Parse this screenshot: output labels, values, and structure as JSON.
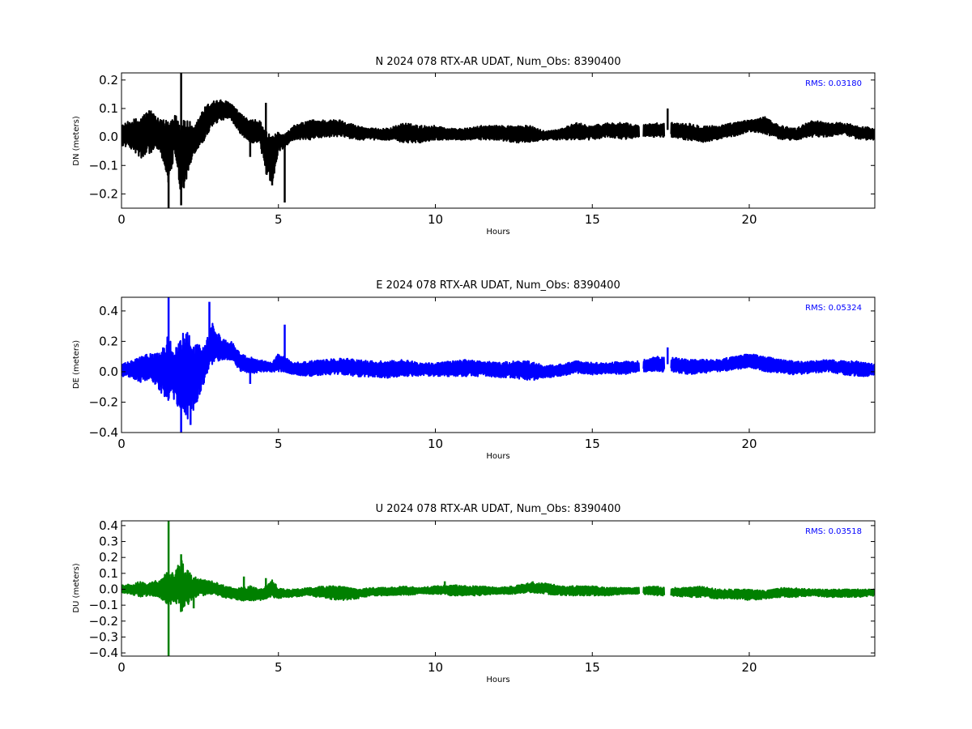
{
  "chart_data": [
    {
      "type": "line",
      "title": "N 2024 078 RTX-AR  UDAT, Num_Obs: 8390400",
      "xlabel": "Hours",
      "ylabel": "DN (meters)",
      "xlim": [
        0,
        24
      ],
      "ylim": [
        -0.25,
        0.225
      ],
      "xticks": [
        "0",
        "5",
        "10",
        "15",
        "20"
      ],
      "yticks": [
        "−0.2",
        "−0.1",
        "0.0",
        "0.1",
        "0.2"
      ],
      "ytick_values": [
        -0.2,
        -0.1,
        0.0,
        0.1,
        0.2
      ],
      "grid": false,
      "color": "#000000",
      "annotation": "RMS:  0.03180",
      "annotation_color": "#0000ff",
      "gaps": [
        [
          16.5,
          16.62
        ],
        [
          17.3,
          17.5
        ]
      ],
      "series": [
        {
          "envelope": {
            "x": [
              0.0,
              0.3,
              0.6,
              0.9,
              1.2,
              1.5,
              1.7,
              1.9,
              2.1,
              2.3,
              2.6,
              2.9,
              3.2,
              3.5,
              3.8,
              4.1,
              4.4,
              4.6,
              4.8,
              5.0,
              5.2,
              5.5,
              6.0,
              6.5,
              7.0,
              7.5,
              8.0,
              8.5,
              9.0,
              9.5,
              10.0,
              10.5,
              11.0,
              11.5,
              12.0,
              12.5,
              13.0,
              13.5,
              14.0,
              14.5,
              15.0,
              15.5,
              16.0,
              16.5,
              17.0,
              17.5,
              18.0,
              18.5,
              19.0,
              19.5,
              20.0,
              20.5,
              21.0,
              21.5,
              22.0,
              22.5,
              23.0,
              23.5,
              24.0
            ],
            "upper": [
              0.04,
              0.06,
              0.07,
              0.1,
              0.06,
              0.06,
              0.09,
              0.05,
              0.07,
              0.03,
              0.1,
              0.13,
              0.13,
              0.12,
              0.08,
              0.06,
              0.06,
              0.02,
              0.0,
              0.02,
              0.01,
              0.04,
              0.06,
              0.06,
              0.06,
              0.04,
              0.03,
              0.03,
              0.05,
              0.04,
              0.04,
              0.03,
              0.03,
              0.04,
              0.04,
              0.04,
              0.04,
              0.02,
              0.03,
              0.05,
              0.04,
              0.05,
              0.05,
              0.04,
              0.05,
              0.05,
              0.05,
              0.04,
              0.04,
              0.05,
              0.06,
              0.07,
              0.04,
              0.03,
              0.06,
              0.05,
              0.05,
              0.04,
              0.03
            ],
            "lower": [
              -0.03,
              -0.04,
              -0.08,
              -0.06,
              -0.04,
              -0.17,
              -0.05,
              -0.21,
              -0.15,
              -0.06,
              -0.02,
              0.04,
              0.06,
              0.06,
              0.01,
              -0.02,
              -0.02,
              -0.13,
              -0.17,
              -0.05,
              -0.04,
              -0.01,
              -0.01,
              0.0,
              0.0,
              -0.01,
              -0.01,
              -0.01,
              -0.02,
              -0.02,
              -0.01,
              -0.01,
              -0.01,
              -0.01,
              -0.01,
              -0.02,
              -0.02,
              -0.01,
              -0.01,
              -0.01,
              -0.01,
              0.0,
              -0.01,
              0.0,
              0.0,
              0.0,
              -0.01,
              -0.02,
              -0.01,
              0.0,
              0.02,
              0.01,
              -0.01,
              -0.01,
              0.0,
              0.0,
              0.01,
              -0.01,
              -0.01
            ]
          },
          "spikes": [
            {
              "x": 1.5,
              "y": -0.25
            },
            {
              "x": 1.9,
              "y": 0.225
            },
            {
              "x": 1.9,
              "y": -0.24
            },
            {
              "x": 4.1,
              "y": -0.07
            },
            {
              "x": 4.6,
              "y": 0.12
            },
            {
              "x": 4.8,
              "y": -0.17
            },
            {
              "x": 5.2,
              "y": -0.23
            },
            {
              "x": 17.4,
              "y": 0.1
            }
          ]
        }
      ]
    },
    {
      "type": "line",
      "title": "E 2024 078 RTX-AR  UDAT, Num_Obs: 8390400",
      "xlabel": "Hours",
      "ylabel": "DE (meters)",
      "xlim": [
        0,
        24
      ],
      "ylim": [
        -0.4,
        0.49
      ],
      "xticks": [
        "0",
        "5",
        "10",
        "15",
        "20"
      ],
      "yticks": [
        "−0.4",
        "−0.2",
        "0.0",
        "0.2",
        "0.4"
      ],
      "ytick_values": [
        -0.4,
        -0.2,
        0.0,
        0.2,
        0.4
      ],
      "grid": false,
      "color": "#0000ff",
      "annotation": "RMS:  0.05324",
      "annotation_color": "#0000ff",
      "gaps": [
        [
          16.5,
          16.62
        ],
        [
          17.3,
          17.5
        ]
      ],
      "series": [
        {
          "envelope": {
            "x": [
              0.0,
              0.3,
              0.6,
              0.9,
              1.2,
              1.5,
              1.7,
              1.9,
              2.1,
              2.3,
              2.6,
              2.9,
              3.2,
              3.5,
              3.8,
              4.1,
              4.4,
              4.6,
              4.8,
              5.0,
              5.2,
              5.5,
              6.0,
              6.5,
              7.0,
              7.5,
              8.0,
              8.5,
              9.0,
              9.5,
              10.0,
              10.5,
              11.0,
              11.5,
              12.0,
              12.5,
              13.0,
              13.5,
              14.0,
              14.5,
              15.0,
              15.5,
              16.0,
              16.5,
              17.0,
              17.5,
              18.0,
              18.5,
              19.0,
              19.5,
              20.0,
              20.5,
              21.0,
              21.5,
              22.0,
              22.5,
              23.0,
              23.5,
              24.0
            ],
            "upper": [
              0.05,
              0.07,
              0.1,
              0.12,
              0.12,
              0.25,
              0.15,
              0.25,
              0.28,
              0.18,
              0.18,
              0.32,
              0.22,
              0.2,
              0.12,
              0.1,
              0.08,
              0.07,
              0.06,
              0.12,
              0.1,
              0.06,
              0.07,
              0.08,
              0.09,
              0.08,
              0.07,
              0.07,
              0.08,
              0.06,
              0.06,
              0.07,
              0.08,
              0.07,
              0.06,
              0.07,
              0.07,
              0.04,
              0.05,
              0.07,
              0.06,
              0.06,
              0.07,
              0.07,
              0.1,
              0.1,
              0.08,
              0.08,
              0.08,
              0.1,
              0.12,
              0.1,
              0.08,
              0.07,
              0.07,
              0.08,
              0.07,
              0.07,
              0.05
            ],
            "lower": [
              -0.03,
              -0.04,
              -0.07,
              -0.05,
              -0.12,
              -0.2,
              -0.18,
              -0.3,
              -0.32,
              -0.25,
              -0.1,
              0.05,
              0.08,
              0.08,
              0.0,
              -0.02,
              0.0,
              0.0,
              0.0,
              0.0,
              0.0,
              -0.02,
              -0.03,
              -0.02,
              -0.02,
              -0.03,
              -0.04,
              -0.04,
              -0.03,
              -0.03,
              -0.03,
              -0.03,
              -0.03,
              -0.03,
              -0.04,
              -0.04,
              -0.06,
              -0.04,
              -0.03,
              -0.01,
              -0.02,
              -0.01,
              -0.02,
              0.0,
              0.0,
              0.0,
              -0.02,
              -0.01,
              0.0,
              0.01,
              0.03,
              0.0,
              -0.01,
              -0.02,
              -0.01,
              0.0,
              -0.02,
              -0.03,
              -0.03
            ]
          },
          "spikes": [
            {
              "x": 1.5,
              "y": 0.49
            },
            {
              "x": 1.9,
              "y": -0.4
            },
            {
              "x": 2.2,
              "y": -0.35
            },
            {
              "x": 2.8,
              "y": 0.46
            },
            {
              "x": 4.1,
              "y": -0.08
            },
            {
              "x": 5.2,
              "y": 0.31
            },
            {
              "x": 17.4,
              "y": 0.16
            }
          ]
        }
      ]
    },
    {
      "type": "line",
      "title": "U 2024 078 RTX-AR  UDAT, Num_Obs: 8390400",
      "xlabel": "Hours",
      "ylabel": "DU (meters)",
      "xlim": [
        0,
        24
      ],
      "ylim": [
        -0.42,
        0.43
      ],
      "xticks": [
        "0",
        "5",
        "10",
        "15",
        "20"
      ],
      "yticks": [
        "−0.4",
        "−0.3",
        "−0.2",
        "−0.1",
        "0.0",
        "0.1",
        "0.2",
        "0.3",
        "0.4"
      ],
      "ytick_values": [
        -0.4,
        -0.3,
        -0.2,
        -0.1,
        0.0,
        0.1,
        0.2,
        0.3,
        0.4
      ],
      "grid": false,
      "color": "#008000",
      "annotation": "RMS:  0.03518",
      "annotation_color": "#0000ff",
      "gaps": [
        [
          16.5,
          16.62
        ],
        [
          17.3,
          17.5
        ]
      ],
      "series": [
        {
          "envelope": {
            "x": [
              0.0,
              0.3,
              0.6,
              0.9,
              1.2,
              1.5,
              1.7,
              1.9,
              2.1,
              2.3,
              2.6,
              2.9,
              3.2,
              3.5,
              3.8,
              4.1,
              4.4,
              4.6,
              4.8,
              5.0,
              5.2,
              5.5,
              6.0,
              6.5,
              7.0,
              7.5,
              8.0,
              8.5,
              9.0,
              9.5,
              10.0,
              10.5,
              11.0,
              11.5,
              12.0,
              12.5,
              13.0,
              13.5,
              14.0,
              14.5,
              15.0,
              15.5,
              16.0,
              16.5,
              17.0,
              17.5,
              18.0,
              18.5,
              19.0,
              19.5,
              20.0,
              20.5,
              21.0,
              21.5,
              22.0,
              22.5,
              23.0,
              23.5,
              24.0
            ],
            "upper": [
              0.03,
              0.03,
              0.05,
              0.04,
              0.06,
              0.12,
              0.1,
              0.2,
              0.12,
              0.08,
              0.06,
              0.05,
              0.03,
              0.01,
              0.01,
              0.02,
              0.0,
              0.02,
              0.06,
              0.01,
              0.0,
              0.0,
              0.01,
              0.02,
              0.02,
              0.0,
              0.01,
              0.01,
              0.02,
              0.01,
              0.02,
              0.03,
              0.02,
              0.02,
              0.01,
              0.02,
              0.04,
              0.04,
              0.02,
              0.02,
              0.02,
              0.01,
              0.01,
              0.01,
              0.02,
              0.01,
              0.01,
              0.02,
              0.0,
              0.0,
              0.0,
              -0.01,
              0.01,
              0.01,
              0.0,
              0.0,
              0.0,
              0.0,
              0.0
            ],
            "lower": [
              -0.02,
              -0.03,
              -0.05,
              -0.04,
              -0.05,
              -0.1,
              -0.08,
              -0.15,
              -0.1,
              -0.06,
              -0.04,
              -0.03,
              -0.05,
              -0.06,
              -0.07,
              -0.08,
              -0.07,
              -0.06,
              -0.05,
              -0.06,
              -0.05,
              -0.05,
              -0.04,
              -0.06,
              -0.07,
              -0.06,
              -0.04,
              -0.04,
              -0.04,
              -0.03,
              -0.03,
              -0.04,
              -0.04,
              -0.04,
              -0.03,
              -0.03,
              -0.02,
              -0.03,
              -0.04,
              -0.04,
              -0.04,
              -0.04,
              -0.03,
              -0.03,
              -0.04,
              -0.04,
              -0.05,
              -0.05,
              -0.06,
              -0.06,
              -0.07,
              -0.06,
              -0.05,
              -0.05,
              -0.04,
              -0.05,
              -0.05,
              -0.05,
              -0.04
            ]
          },
          "spikes": [
            {
              "x": 1.5,
              "y": 0.43
            },
            {
              "x": 1.5,
              "y": -0.42
            },
            {
              "x": 1.9,
              "y": 0.22
            },
            {
              "x": 2.3,
              "y": -0.12
            },
            {
              "x": 3.9,
              "y": 0.08
            },
            {
              "x": 4.6,
              "y": 0.07
            },
            {
              "x": 10.3,
              "y": 0.05
            },
            {
              "x": 13.1,
              "y": 0.05
            }
          ]
        }
      ]
    }
  ]
}
